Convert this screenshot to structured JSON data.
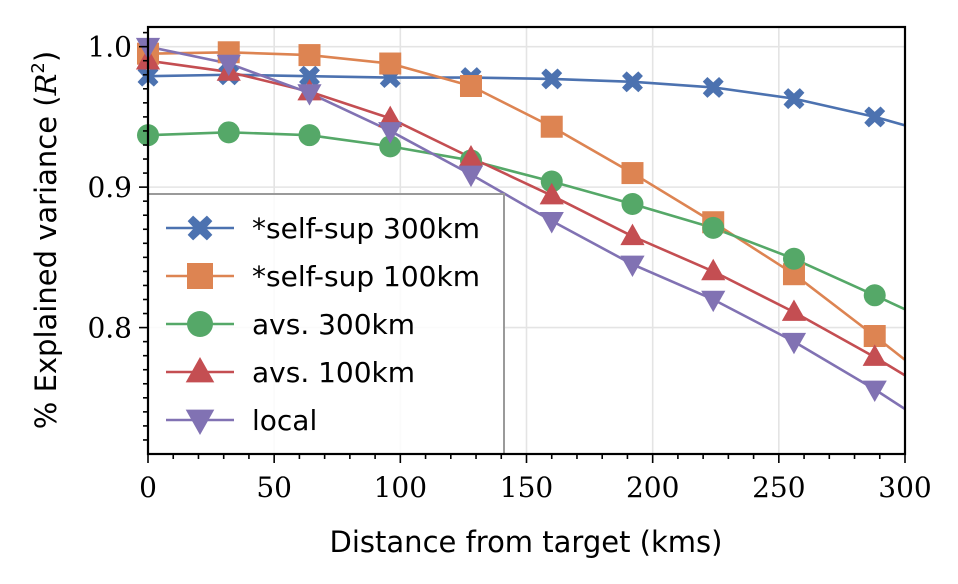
{
  "chart_data": {
    "type": "line",
    "title": "",
    "xlabel": "Distance from target (kms)",
    "ylabel_text": "% Explained variance (",
    "ylabel_var": "R",
    "ylabel_sup": "2",
    "ylabel_close": ")",
    "xlim": [
      0,
      300
    ],
    "ylim": [
      0.71,
      1.014
    ],
    "x_ticks": [
      0,
      50,
      100,
      150,
      200,
      250,
      300
    ],
    "x_tick_labels": [
      "0",
      "50",
      "100",
      "150",
      "200",
      "250",
      "300"
    ],
    "y_ticks": [
      0.8,
      0.9,
      1.0
    ],
    "y_tick_labels": [
      "0.8",
      "0.9",
      "1.0"
    ],
    "grid": true,
    "legend_position": "lower-left",
    "marker_x": [
      0,
      32,
      64,
      96,
      128,
      160,
      192,
      224,
      256,
      288
    ],
    "series": [
      {
        "name": "*self-sup 300km",
        "color": "#4c72b0",
        "marker": "x-bold",
        "curve_x": [
          0,
          32,
          64,
          96,
          128,
          160,
          192,
          224,
          256,
          288,
          300
        ],
        "curve_y": [
          0.979,
          0.98,
          0.979,
          0.978,
          0.978,
          0.977,
          0.975,
          0.971,
          0.963,
          0.95,
          0.944
        ],
        "marker_y": [
          0.979,
          0.98,
          0.979,
          0.978,
          0.978,
          0.977,
          0.975,
          0.971,
          0.963,
          0.95
        ]
      },
      {
        "name": "*self-sup 100km",
        "color": "#dd8452",
        "marker": "square",
        "curve_x": [
          0,
          32,
          64,
          96,
          128,
          160,
          192,
          224,
          256,
          288,
          300
        ],
        "curve_y": [
          0.995,
          0.996,
          0.994,
          0.988,
          0.972,
          0.943,
          0.91,
          0.875,
          0.838,
          0.794,
          0.777
        ],
        "marker_y": [
          0.995,
          0.996,
          0.994,
          0.988,
          0.972,
          0.943,
          0.91,
          0.875,
          0.838,
          0.794
        ]
      },
      {
        "name": "avs. 300km",
        "color": "#55a868",
        "marker": "circle",
        "curve_x": [
          0,
          32,
          64,
          96,
          128,
          160,
          192,
          224,
          256,
          288,
          300
        ],
        "curve_y": [
          0.937,
          0.939,
          0.937,
          0.929,
          0.919,
          0.904,
          0.888,
          0.871,
          0.849,
          0.823,
          0.813
        ],
        "marker_y": [
          0.937,
          0.939,
          0.937,
          0.929,
          0.919,
          0.904,
          0.888,
          0.871,
          0.849,
          0.823
        ]
      },
      {
        "name": "avs. 100km",
        "color": "#c44e52",
        "marker": "triangle-up",
        "curve_x": [
          0,
          32,
          64,
          96,
          128,
          160,
          192,
          224,
          256,
          288,
          300
        ],
        "curve_y": [
          0.99,
          0.982,
          0.968,
          0.949,
          0.921,
          0.894,
          0.865,
          0.84,
          0.811,
          0.779,
          0.766
        ],
        "marker_y": [
          0.99,
          0.982,
          0.968,
          0.949,
          0.921,
          0.894,
          0.865,
          0.84,
          0.811,
          0.779
        ]
      },
      {
        "name": "local",
        "color": "#8172b3",
        "marker": "triangle-down",
        "curve_x": [
          0,
          32,
          64,
          96,
          128,
          160,
          192,
          224,
          256,
          288,
          300
        ],
        "curve_y": [
          1.0,
          0.988,
          0.967,
          0.94,
          0.909,
          0.876,
          0.845,
          0.82,
          0.79,
          0.756,
          0.742
        ],
        "marker_y": [
          1.0,
          0.988,
          0.967,
          0.94,
          0.909,
          0.876,
          0.845,
          0.82,
          0.79,
          0.756
        ]
      }
    ]
  }
}
